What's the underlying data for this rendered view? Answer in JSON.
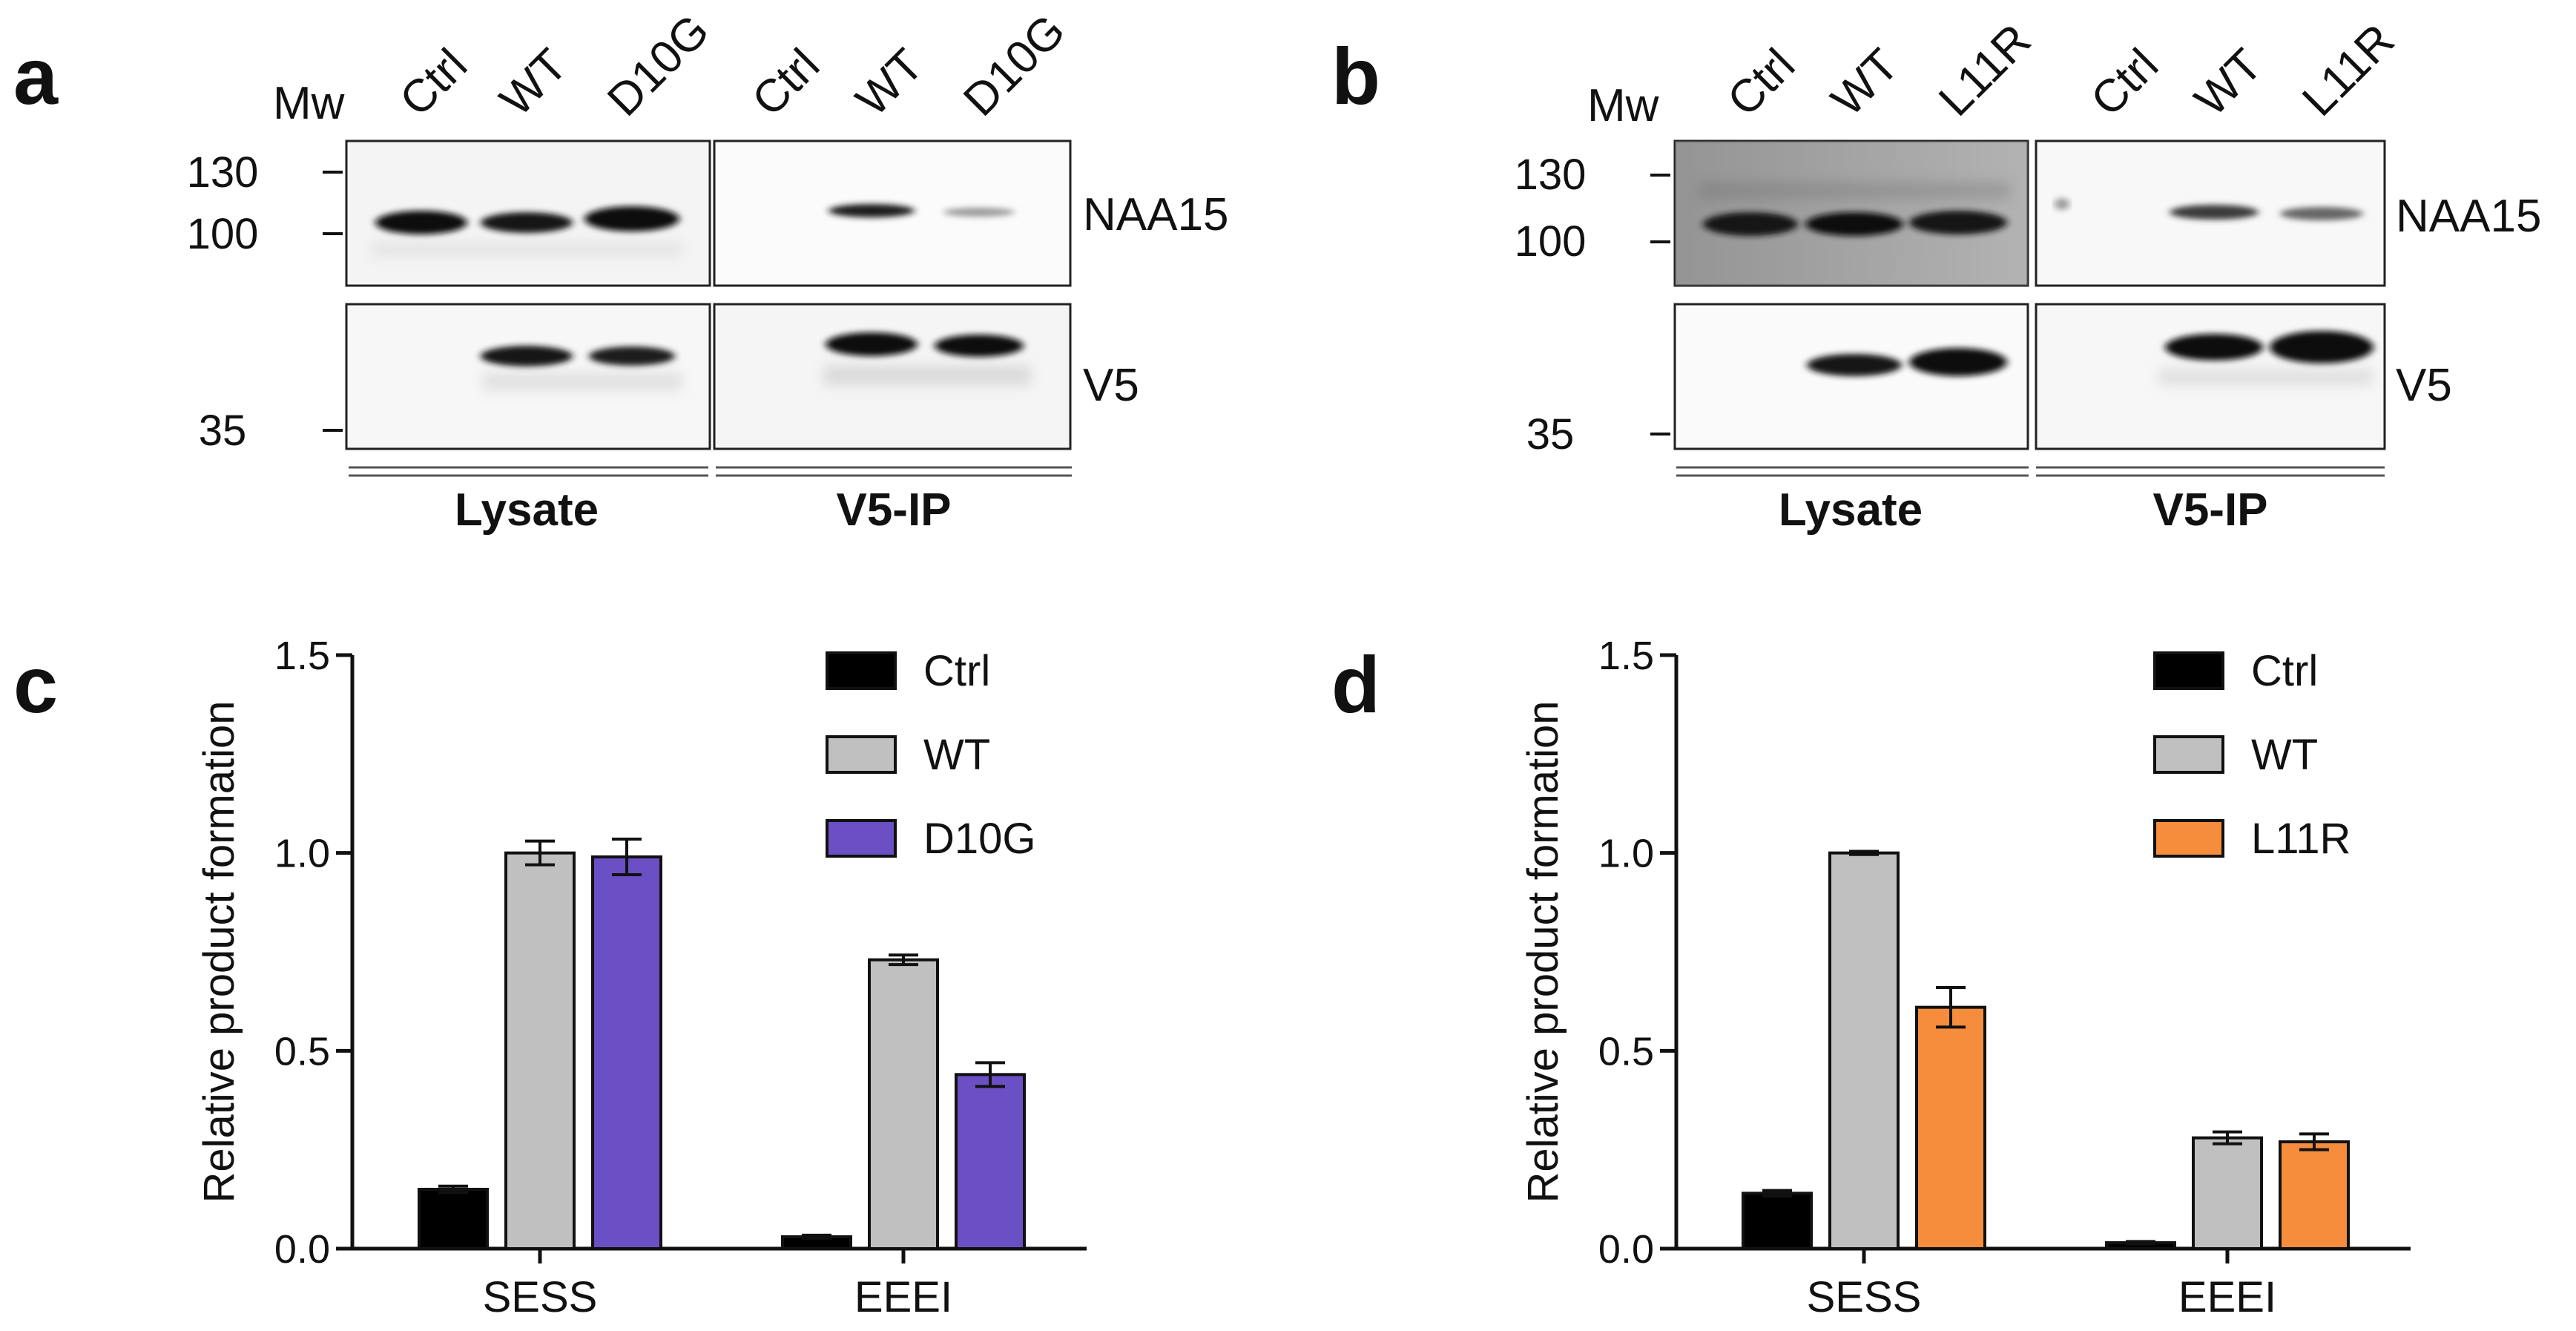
{
  "panels": {
    "a": {
      "label": "a",
      "mw_header": "Mw",
      "lanes": [
        "Ctrl",
        "WT",
        "D10G",
        "Ctrl",
        "WT",
        "D10G"
      ],
      "mw_markers": [
        "130",
        "100",
        "35"
      ],
      "proteins": [
        "NAA15",
        "V5"
      ],
      "groups": [
        "Lysate",
        "V5-IP"
      ],
      "band_intensity": {
        "NAA15_lysate": [
          0.9,
          0.9,
          0.95
        ],
        "NAA15_ip": [
          0.0,
          0.75,
          0.35
        ],
        "V5_lysate": [
          0.0,
          0.85,
          0.8
        ],
        "V5_ip": [
          0.0,
          0.95,
          0.9
        ]
      }
    },
    "b": {
      "label": "b",
      "mw_header": "Mw",
      "lanes": [
        "Ctrl",
        "WT",
        "L11R",
        "Ctrl",
        "WT",
        "L11R"
      ],
      "mw_markers": [
        "130",
        "100",
        "35"
      ],
      "proteins": [
        "NAA15",
        "V5"
      ],
      "groups": [
        "Lysate",
        "V5-IP"
      ],
      "band_intensity": {
        "NAA15_lysate": [
          0.85,
          0.9,
          0.9
        ],
        "NAA15_ip": [
          0.05,
          0.6,
          0.5
        ],
        "V5_lysate": [
          0.0,
          0.85,
          0.9
        ],
        "V5_ip": [
          0.0,
          0.95,
          1.0
        ]
      }
    },
    "c": {
      "label": "c"
    },
    "d": {
      "label": "d"
    }
  },
  "colors": {
    "ctrl": "#000000",
    "wt": "#c0c0c0",
    "d10g": "#6b4fc4",
    "l11r": "#f58d3c"
  },
  "chart_data": [
    {
      "type": "bar",
      "panel": "c",
      "title": "",
      "xlabel": "",
      "ylabel": "Relative product formation",
      "ylim": [
        0,
        1.5
      ],
      "yticks": [
        "0.0",
        "0.5",
        "1.0",
        "1.5"
      ],
      "categories": [
        "SESS",
        "EEEI"
      ],
      "series": [
        {
          "name": "Ctrl",
          "values": [
            0.15,
            0.03
          ],
          "errors": [
            0.008,
            0.004
          ]
        },
        {
          "name": "WT",
          "values": [
            1.0,
            0.73
          ],
          "errors": [
            0.03,
            0.012
          ]
        },
        {
          "name": "D10G",
          "values": [
            0.99,
            0.44
          ],
          "errors": [
            0.045,
            0.03
          ]
        }
      ],
      "legend": "top-right"
    },
    {
      "type": "bar",
      "panel": "d",
      "title": "",
      "xlabel": "",
      "ylabel": "Relative product formation",
      "ylim": [
        0,
        1.5
      ],
      "yticks": [
        "0.0",
        "0.5",
        "1.0",
        "1.5"
      ],
      "categories": [
        "SESS",
        "EEEI"
      ],
      "series": [
        {
          "name": "Ctrl",
          "values": [
            0.14,
            0.015
          ],
          "errors": [
            0.007,
            0.003
          ]
        },
        {
          "name": "WT",
          "values": [
            1.0,
            0.28
          ],
          "errors": [
            0.004,
            0.015
          ]
        },
        {
          "name": "L11R",
          "values": [
            0.61,
            0.27
          ],
          "errors": [
            0.05,
            0.02
          ]
        }
      ],
      "legend": "top-right"
    }
  ]
}
